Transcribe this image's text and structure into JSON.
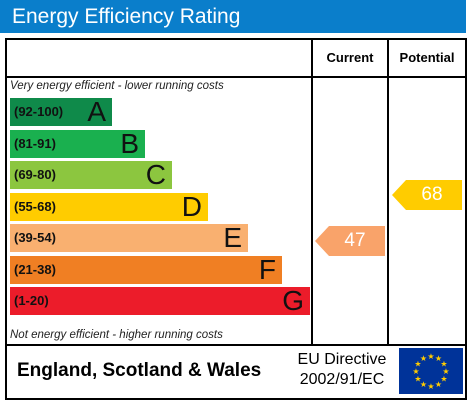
{
  "title": "Energy Efficiency Rating",
  "columns": {
    "current": "Current",
    "potential": "Potential"
  },
  "top_note": "Very energy efficient - lower running costs",
  "bottom_note": "Not energy efficient - higher running costs",
  "bands": [
    {
      "range": "(92-100)",
      "letter": "A",
      "color": "#0f8a4a"
    },
    {
      "range": "(81-91)",
      "letter": "B",
      "color": "#1ab04f"
    },
    {
      "range": "(69-80)",
      "letter": "C",
      "color": "#8cc63f"
    },
    {
      "range": "(55-68)",
      "letter": "D",
      "color": "#ffcc00"
    },
    {
      "range": "(39-54)",
      "letter": "E",
      "color": "#f9b070"
    },
    {
      "range": "(21-38)",
      "letter": "F",
      "color": "#f07f23"
    },
    {
      "range": "(1-20)",
      "letter": "G",
      "color": "#ec1c2a"
    }
  ],
  "current": {
    "value": "47",
    "band": "E",
    "color": "#f9a36a"
  },
  "potential": {
    "value": "68",
    "band": "D",
    "color": "#ffcc00"
  },
  "footer": {
    "region": "England, Scotland & Wales",
    "directive_line1": "EU Directive",
    "directive_line2": "2002/91/EC"
  },
  "flag": {
    "icon": "eu-flag-icon",
    "background": "#003399",
    "stars": "#ffcc00"
  }
}
